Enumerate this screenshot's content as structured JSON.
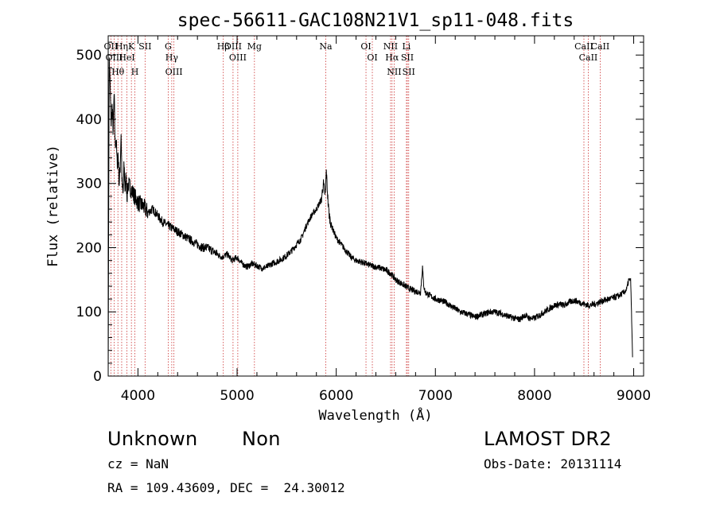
{
  "chart_data": {
    "type": "line",
    "title": "spec-56611-GAC108N21V1_sp11-048.fits",
    "xlabel": "Wavelength (Å)",
    "ylabel": "Flux (relative)",
    "xlim": [
      3700,
      9100
    ],
    "ylim": [
      0,
      530
    ],
    "xticks": [
      4000,
      5000,
      6000,
      7000,
      8000,
      9000
    ],
    "yticks": [
      0,
      100,
      200,
      300,
      400,
      500
    ],
    "grid": false,
    "line_color": "#000000",
    "marker_color": "#cc3333",
    "series": [
      {
        "x": [
          3700,
          3710,
          3720,
          3730,
          3740,
          3750,
          3760,
          3770,
          3780,
          3790,
          3800,
          3810,
          3820,
          3830,
          3840,
          3850,
          3860,
          3870,
          3880,
          3890,
          3900,
          3950,
          4000,
          4050,
          4100,
          4150,
          4200,
          4250,
          4300,
          4350,
          4400,
          4450,
          4500,
          4550,
          4600,
          4650,
          4700,
          4750,
          4800,
          4850,
          4900,
          4950,
          5000,
          5050,
          5100,
          5150,
          5200,
          5250,
          5300,
          5350,
          5400,
          5450,
          5500,
          5550,
          5600,
          5650,
          5700,
          5750,
          5800,
          5850,
          5870,
          5890,
          5900,
          5910,
          5920,
          5930,
          5950,
          6000,
          6050,
          6100,
          6150,
          6200,
          6250,
          6300,
          6350,
          6400,
          6450,
          6500,
          6550,
          6600,
          6650,
          6700,
          6750,
          6800,
          6850,
          6870,
          6880,
          6890,
          6900,
          6950,
          7000,
          7050,
          7100,
          7150,
          7200,
          7250,
          7300,
          7350,
          7400,
          7450,
          7500,
          7550,
          7600,
          7650,
          7700,
          7750,
          7800,
          7850,
          7900,
          7950,
          8000,
          8050,
          8100,
          8150,
          8200,
          8250,
          8300,
          8350,
          8400,
          8450,
          8500,
          8550,
          8600,
          8650,
          8700,
          8750,
          8800,
          8850,
          8900,
          8930,
          8950,
          8970,
          8990
        ],
        "y": [
          0,
          500,
          450,
          390,
          420,
          380,
          440,
          360,
          370,
          330,
          350,
          300,
          320,
          380,
          300,
          280,
          330,
          290,
          310,
          280,
          300,
          285,
          270,
          265,
          255,
          260,
          250,
          240,
          235,
          230,
          225,
          220,
          215,
          210,
          205,
          200,
          200,
          195,
          190,
          185,
          190,
          180,
          185,
          175,
          170,
          175,
          172,
          168,
          170,
          175,
          178,
          182,
          188,
          195,
          205,
          215,
          235,
          250,
          260,
          275,
          300,
          280,
          320,
          290,
          265,
          250,
          235,
          215,
          205,
          195,
          185,
          180,
          178,
          175,
          172,
          170,
          168,
          165,
          160,
          150,
          145,
          140,
          135,
          132,
          130,
          170,
          145,
          135,
          130,
          125,
          120,
          118,
          115,
          110,
          105,
          100,
          98,
          95,
          92,
          95,
          97,
          100,
          100,
          98,
          95,
          92,
          90,
          88,
          95,
          90,
          90,
          95,
          100,
          105,
          110,
          112,
          110,
          115,
          118,
          115,
          112,
          110,
          112,
          115,
          118,
          120,
          122,
          125,
          130,
          135,
          150,
          150,
          20
        ]
      }
    ],
    "lines": [
      {
        "label": "OII",
        "wl": 3727
      },
      {
        "label": "Hθ",
        "wl": 3798
      },
      {
        "label": "OIII",
        "wl": 3760
      },
      {
        "label": "Hη",
        "wl": 3836
      },
      {
        "label": "HeI",
        "wl": 3889
      },
      {
        "label": "K",
        "wl": 3934
      },
      {
        "label": "H",
        "wl": 3969
      },
      {
        "label": "SII",
        "wl": 4072
      },
      {
        "label": "G",
        "wl": 4305
      },
      {
        "label": "Hγ",
        "wl": 4341
      },
      {
        "label": "OIII",
        "wl": 4363
      },
      {
        "label": "Hβ",
        "wl": 4861
      },
      {
        "label": "OIII",
        "wl": 4959
      },
      {
        "label": "OIII",
        "wl": 5007
      },
      {
        "label": "Mg",
        "wl": 5175
      },
      {
        "label": "Na",
        "wl": 5894
      },
      {
        "label": "OI",
        "wl": 6300
      },
      {
        "label": "OI",
        "wl": 6364
      },
      {
        "label": "NII",
        "wl": 6548
      },
      {
        "label": "Hα",
        "wl": 6563
      },
      {
        "label": "NII",
        "wl": 6584
      },
      {
        "label": "Li",
        "wl": 6708
      },
      {
        "label": "SII",
        "wl": 6717
      },
      {
        "label": "SII",
        "wl": 6731
      },
      {
        "label": "CaII",
        "wl": 8498
      },
      {
        "label": "CaII",
        "wl": 8542
      },
      {
        "label": "CaII",
        "wl": 8662
      }
    ]
  },
  "footer": {
    "object_class": "Unknown",
    "subclass": "Non",
    "survey": "LAMOST DR2",
    "cz": "cz = NaN",
    "obs_date": "Obs-Date: 20131114",
    "coords": "RA = 109.43609, DEC =  24.30012"
  }
}
